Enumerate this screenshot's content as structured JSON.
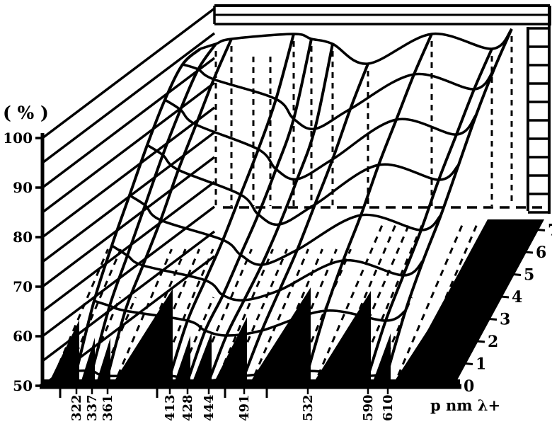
{
  "figure": {
    "y_axis_title": "( % )",
    "x_axis_label": "p nm λ+",
    "y_ticks": [
      "100",
      "90",
      "80",
      "70",
      "60",
      "50"
    ],
    "x_ticks": [
      "322",
      "337",
      "361",
      "413",
      "428",
      "444",
      "491",
      "532",
      "590",
      "610"
    ],
    "depth_ticks": [
      "0",
      "1",
      "2",
      "3",
      "4",
      "5",
      "6",
      "7"
    ]
  },
  "chart_data": {
    "type": "surface",
    "title": "",
    "xlabel": "p nm λ+",
    "ylabel": "( % )",
    "x_categories": [
      322,
      337,
      361,
      413,
      428,
      444,
      491,
      532,
      590,
      610
    ],
    "depth_categories": [
      0,
      1,
      2,
      3,
      4,
      5,
      6,
      7
    ],
    "zlim": [
      50,
      100
    ],
    "grid": "wireframe",
    "legend": false,
    "colors": {
      "ink": "#000000",
      "paper": "#ffffff"
    },
    "series": [
      {
        "name": "0",
        "values": [
          53,
          53,
          52,
          52,
          51,
          51,
          52,
          53,
          52,
          53
        ]
      },
      {
        "name": "1",
        "values": [
          64,
          63,
          62,
          60,
          58,
          57,
          58,
          62,
          60,
          62
        ]
      },
      {
        "name": "2",
        "values": [
          72,
          70,
          68,
          65,
          62,
          61,
          63,
          69,
          66,
          69
        ]
      },
      {
        "name": "3",
        "values": [
          79,
          77,
          74,
          70,
          67,
          65,
          68,
          75,
          72,
          75
        ]
      },
      {
        "name": "4",
        "values": [
          86,
          84,
          81,
          76,
          72,
          70,
          74,
          82,
          79,
          82
        ]
      },
      {
        "name": "5",
        "values": [
          92,
          90,
          87,
          82,
          78,
          76,
          80,
          88,
          85,
          89
        ]
      },
      {
        "name": "6",
        "values": [
          96,
          95,
          93,
          89,
          85,
          83,
          87,
          94,
          91,
          95
        ]
      },
      {
        "name": "7",
        "values": [
          96,
          97,
          98,
          99,
          98,
          97,
          93,
          99,
          96,
          100
        ]
      }
    ]
  }
}
